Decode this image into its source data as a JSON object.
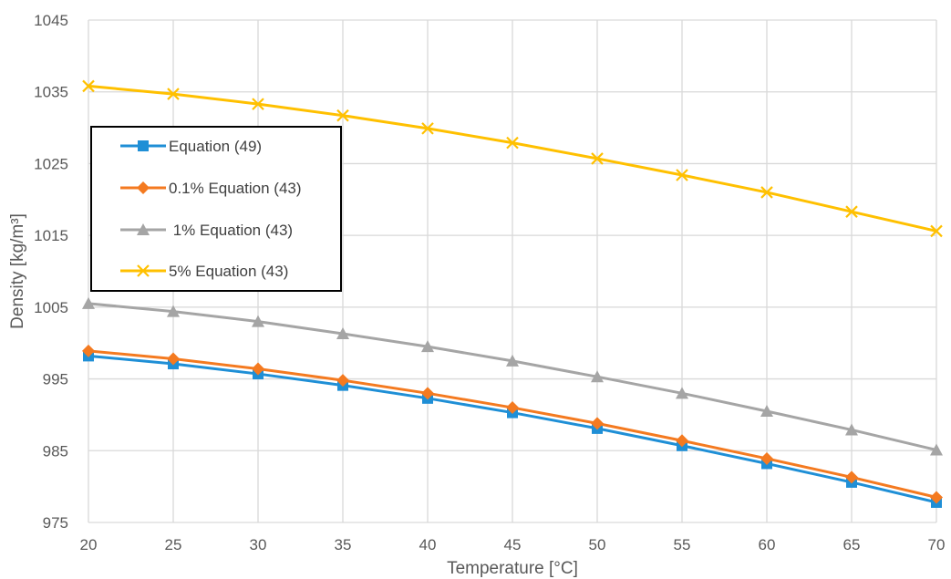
{
  "chart_data": {
    "type": "line",
    "title": "",
    "xlabel": "Temperature [°C]",
    "ylabel": "Density [kg/m³]",
    "x": [
      20,
      25,
      30,
      35,
      40,
      45,
      50,
      55,
      60,
      65,
      70
    ],
    "xlim": [
      20,
      70
    ],
    "ylim": [
      975,
      1045
    ],
    "xticks": [
      "20",
      "25",
      "30",
      "35",
      "40",
      "45",
      "50",
      "55",
      "60",
      "65",
      "70"
    ],
    "yticks": [
      "975",
      "985",
      "995",
      "1005",
      "1015",
      "1025",
      "1035",
      "1045"
    ],
    "grid": true,
    "legend_position": "upper-left",
    "series": [
      {
        "name": "Equation (49)",
        "color": "#1F8FD6",
        "marker": "square",
        "values": [
          998.2,
          997.1,
          995.7,
          994.1,
          992.3,
          990.3,
          988.1,
          985.7,
          983.2,
          980.6,
          977.8
        ]
      },
      {
        "name": "0.1% Equation (43)",
        "color": "#F47A20",
        "marker": "diamond",
        "values": [
          998.9,
          997.8,
          996.4,
          994.8,
          993.0,
          991.0,
          988.8,
          986.4,
          983.9,
          981.3,
          978.5
        ]
      },
      {
        "name": " 1% Equation (43)",
        "color": "#A5A5A5",
        "marker": "triangle",
        "values": [
          1005.5,
          1004.4,
          1003.0,
          1001.3,
          999.5,
          997.5,
          995.3,
          993.0,
          990.5,
          987.9,
          985.1
        ]
      },
      {
        "name": "5% Equation (43)",
        "color": "#FFC000",
        "marker": "x",
        "values": [
          1035.8,
          1034.7,
          1033.3,
          1031.7,
          1029.9,
          1027.9,
          1025.7,
          1023.4,
          1021.0,
          1018.3,
          1015.6
        ]
      }
    ]
  }
}
